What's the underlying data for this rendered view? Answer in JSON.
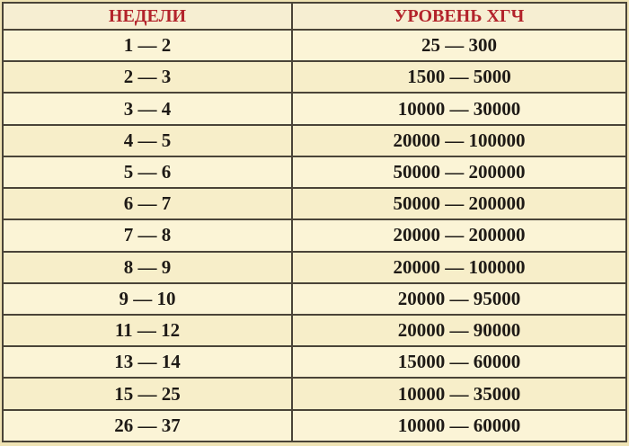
{
  "table": {
    "header": [
      "НЕДЕЛИ",
      "УРОВЕНЬ ХГЧ"
    ],
    "rows": [
      [
        "1 — 2",
        "25 — 300"
      ],
      [
        "2 — 3",
        "1500 — 5000"
      ],
      [
        "3 — 4",
        "10000 — 30000"
      ],
      [
        "4 — 5",
        "20000 — 100000"
      ],
      [
        "5 — 6",
        "50000 — 200000"
      ],
      [
        "6 — 7",
        "50000 — 200000"
      ],
      [
        "7 — 8",
        "20000 — 200000"
      ],
      [
        "8 — 9",
        "20000 — 100000"
      ],
      [
        "9 — 10",
        "20000 — 95000"
      ],
      [
        "11 — 12",
        "20000 — 90000"
      ],
      [
        "13 — 14",
        "15000 — 60000"
      ],
      [
        "15 — 25",
        "10000 — 35000"
      ],
      [
        "26 — 37",
        "10000 — 60000"
      ]
    ]
  }
}
